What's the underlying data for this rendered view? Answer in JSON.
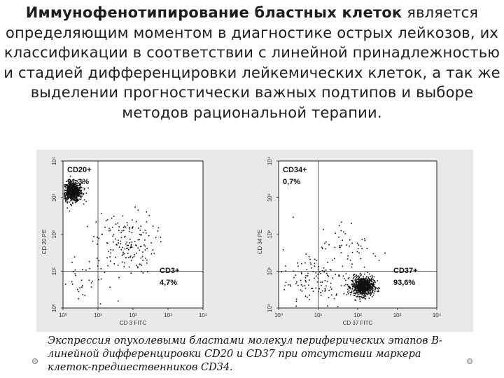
{
  "slide": {
    "title_bold": "Иммунофенотипирование бластных клеток",
    "title_rest": " является определяющим моментом в диагностике острых лейкозов, их классификации в соответствии с линейной принадлежностью и стадией дифференцировки лейкемических клеток,  а так же  выделении прогностически важных подтипов и выборе методов рациональной терапии."
  },
  "caption": "Экспрессия опухолевыми бластами молекул периферических этапов В-линейной дифференцировки CD20 и CD37 при отсутствии маркера клеток-предшественников CD34.",
  "chart_data": [
    {
      "type": "scatter",
      "xlabel": "CD 3 FITC",
      "ylabel": "CD 20 PE",
      "x_ticks": [
        "10⁰",
        "10¹",
        "10²",
        "10³",
        "10⁴"
      ],
      "y_ticks": [
        "10⁰",
        "10¹",
        "10²",
        "10³",
        "10⁴"
      ],
      "x_scale": "log",
      "y_scale": "log",
      "xlim": [
        1,
        10000
      ],
      "ylim": [
        1,
        10000
      ],
      "quadrant_split": [
        10,
        10
      ],
      "annotations": [
        {
          "label": "CD20+",
          "value": "91,3%",
          "quadrant": "top-left"
        },
        {
          "label": "CD3+",
          "value": "4,7%",
          "quadrant": "bottom-right"
        }
      ],
      "clusters": [
        {
          "center": [
            1.8,
            1500
          ],
          "count": 700,
          "spread": "dense"
        },
        {
          "center": [
            60,
            60
          ],
          "count": 170,
          "spread": "sparse"
        },
        {
          "center": [
            4,
            4
          ],
          "count": 35,
          "spread": "sparse"
        }
      ]
    },
    {
      "type": "scatter",
      "xlabel": "CD 37 FITC",
      "ylabel": "CD 34 PE",
      "x_ticks": [
        "10⁰",
        "10¹",
        "10²",
        "10³",
        "10⁴"
      ],
      "y_ticks": [
        "10⁰",
        "10¹",
        "10²",
        "10³",
        "10⁴"
      ],
      "x_scale": "log",
      "y_scale": "log",
      "xlim": [
        1,
        10000
      ],
      "ylim": [
        1,
        10000
      ],
      "quadrant_split": [
        10,
        10
      ],
      "annotations": [
        {
          "label": "CD34+",
          "value": "0,7%",
          "quadrant": "top-left"
        },
        {
          "label": "CD37+",
          "value": "93,6%",
          "quadrant": "bottom-right"
        }
      ],
      "clusters": [
        {
          "center": [
            130,
            4
          ],
          "count": 750,
          "spread": "dense"
        },
        {
          "center": [
            8,
            6
          ],
          "count": 120,
          "spread": "sparse"
        },
        {
          "center": [
            60,
            40
          ],
          "count": 60,
          "spread": "sparse"
        }
      ]
    }
  ]
}
